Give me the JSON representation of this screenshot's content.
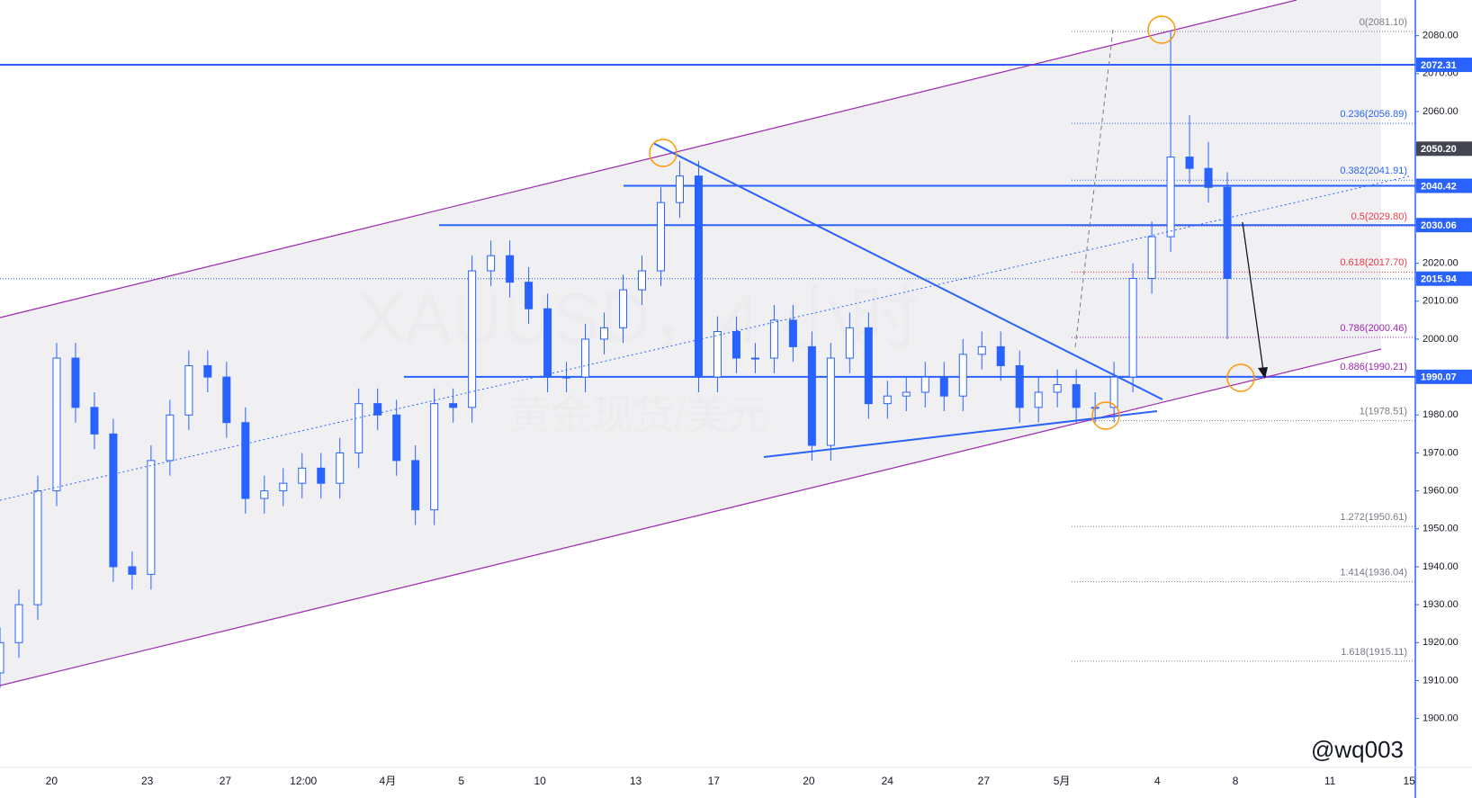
{
  "chart_data": {
    "type": "candlestick",
    "watermark": "XAUUSD，4 小时",
    "watermark2": "黄金现货/美元",
    "signature": "@wq003",
    "x": [
      0,
      3,
      6,
      9,
      12,
      15,
      18,
      21,
      24,
      27,
      30,
      33,
      36,
      39,
      42,
      45,
      48,
      51,
      54,
      57,
      60,
      63,
      66,
      69,
      72,
      75,
      78,
      81,
      84,
      87,
      90,
      93,
      96,
      99,
      102,
      105,
      108,
      111,
      114,
      117,
      120,
      123,
      126,
      129,
      132,
      135,
      138,
      141,
      144,
      147,
      150,
      153,
      156,
      159,
      162,
      165,
      168,
      171,
      174,
      177,
      180,
      183,
      186,
      189,
      192,
      195
    ],
    "open": [
      1912,
      1920,
      1930,
      1960,
      1995,
      1982,
      1975,
      1940,
      1938,
      1968,
      1980,
      1993,
      1990,
      1978,
      1958,
      1960,
      1962,
      1966,
      1962,
      1970,
      1983,
      1980,
      1968,
      1955,
      1983,
      1982,
      2018,
      2022,
      2015,
      2008,
      1990,
      1990,
      2000,
      2003,
      2013,
      2018,
      2036,
      2043,
      1990,
      2002,
      1995,
      1995,
      2005,
      1998,
      1972,
      1995,
      2003,
      1983,
      1985,
      1986,
      1990,
      1985,
      1996,
      1998,
      1993,
      1982,
      1986,
      1988,
      1982,
      1982,
      1990,
      2016,
      2027,
      2048,
      2045,
      2040
    ],
    "high": [
      1924,
      1934,
      1964,
      1999,
      1999,
      1986,
      1979,
      1944,
      1972,
      1984,
      1997,
      1997,
      1994,
      1982,
      1964,
      1966,
      1970,
      1970,
      1974,
      1987,
      1987,
      1984,
      1972,
      1987,
      1987,
      2022,
      2026,
      2026,
      2019,
      2012,
      1994,
      2004,
      2007,
      2017,
      2022,
      2040,
      2047,
      2047,
      2006,
      2006,
      1999,
      2009,
      2009,
      2002,
      1999,
      2007,
      2007,
      1989,
      1990,
      1994,
      1994,
      2000,
      2002,
      2002,
      1997,
      1990,
      1992,
      1992,
      1986,
      1994,
      2020,
      2031,
      2081,
      2059,
      2052,
      2044
    ],
    "low": [
      1908,
      1916,
      1926,
      1956,
      1978,
      1971,
      1936,
      1934,
      1934,
      1964,
      1976,
      1986,
      1974,
      1954,
      1954,
      1956,
      1958,
      1958,
      1958,
      1966,
      1976,
      1964,
      1951,
      1951,
      1978,
      1978,
      2014,
      2011,
      2004,
      1986,
      1986,
      1986,
      1996,
      1999,
      2009,
      2014,
      2032,
      1986,
      1986,
      1991,
      1991,
      1991,
      1994,
      1968,
      1968,
      1991,
      1979,
      1979,
      1981,
      1982,
      1981,
      1981,
      1992,
      1989,
      1978,
      1978,
      1982,
      1978,
      1978,
      1978,
      1986,
      2012,
      2023,
      2041,
      2036,
      2000
    ],
    "close": [
      1920,
      1930,
      1960,
      1995,
      1982,
      1975,
      1940,
      1938,
      1968,
      1980,
      1993,
      1990,
      1978,
      1958,
      1960,
      1962,
      1966,
      1962,
      1970,
      1983,
      1980,
      1968,
      1955,
      1983,
      1982,
      2018,
      2022,
      2015,
      2008,
      1990,
      1990,
      2000,
      2003,
      2013,
      2018,
      2036,
      2043,
      1990,
      2002,
      1995,
      1995,
      2005,
      1998,
      1972,
      1995,
      2003,
      1983,
      1985,
      1986,
      1990,
      1985,
      1996,
      1998,
      1993,
      1982,
      1986,
      1988,
      1982,
      1982,
      1990,
      2016,
      2027,
      2048,
      2045,
      2040,
      2016
    ],
    "color": "#2962ff",
    "xlim": [
      0,
      225
    ],
    "xticks": [
      {
        "value": 8.2,
        "label": "20"
      },
      {
        "value": 23.4,
        "label": "23"
      },
      {
        "value": 35.8,
        "label": "27"
      },
      {
        "value": 48.2,
        "label": "12:00"
      },
      {
        "value": 61.6,
        "label": "4月"
      },
      {
        "value": 73.3,
        "label": "5"
      },
      {
        "value": 85.8,
        "label": "10"
      },
      {
        "value": 101,
        "label": "13"
      },
      {
        "value": 113.4,
        "label": "17"
      },
      {
        "value": 128.5,
        "label": "20"
      },
      {
        "value": 141,
        "label": "24"
      },
      {
        "value": 156.3,
        "label": "27"
      },
      {
        "value": 168.7,
        "label": "5月"
      },
      {
        "value": 183.9,
        "label": "4"
      },
      {
        "value": 196.3,
        "label": "8"
      },
      {
        "value": 211.3,
        "label": "11"
      },
      {
        "value": 223.9,
        "label": "15"
      }
    ],
    "ylim": [
      1887.1,
      2089.4
    ],
    "yticks": [
      {
        "value": 1900,
        "label": "1900.00"
      },
      {
        "value": 1910,
        "label": "1910.00"
      },
      {
        "value": 1920,
        "label": "1920.00"
      },
      {
        "value": 1930,
        "label": "1930.00"
      },
      {
        "value": 1940,
        "label": "1940.00"
      },
      {
        "value": 1950,
        "label": "1950.00"
      },
      {
        "value": 1960,
        "label": "1960.00"
      },
      {
        "value": 1970,
        "label": "1970.00"
      },
      {
        "value": 1980,
        "label": "1980.00"
      },
      {
        "value": 1990,
        "label": "1990.00"
      },
      {
        "value": 2000,
        "label": "2000.00"
      },
      {
        "value": 2010,
        "label": "2010.00"
      },
      {
        "value": 2020,
        "label": "2020.00"
      },
      {
        "value": 2030,
        "label": "2030.00"
      },
      {
        "value": 2040,
        "label": "2040.00"
      },
      {
        "value": 2050,
        "label": "2050.00"
      },
      {
        "value": 2060,
        "label": "2060.00"
      },
      {
        "value": 2070,
        "label": "2070.00"
      },
      {
        "value": 2080,
        "label": "2080.00"
      }
    ],
    "price_lines": [
      {
        "value": 2072.31,
        "label": "2072.31",
        "color": "#2962ff"
      },
      {
        "value": 2050.2,
        "label": "2050.20",
        "color": "#434651"
      },
      {
        "value": 2040.42,
        "label": "2040.42",
        "color": "#2962ff"
      },
      {
        "value": 2030.06,
        "label": "2030.06",
        "color": "#2962ff"
      },
      {
        "value": 2015.94,
        "label": "2015.94",
        "color": "#2962ff"
      },
      {
        "value": 1990.07,
        "label": "1990.07",
        "color": "#2962ff"
      }
    ],
    "fib_levels": [
      {
        "value": 2081.1,
        "label": "0(2081.10)",
        "color": "#787b86"
      },
      {
        "value": 2056.89,
        "label": "0.236(2056.89)",
        "color": "#2962ff"
      },
      {
        "value": 2041.91,
        "label": "0.382(2041.91)",
        "color": "#2962ff"
      },
      {
        "value": 2029.8,
        "label": "0.5(2029.80)",
        "color": "#f23645"
      },
      {
        "value": 2017.7,
        "label": "0.618(2017.70)",
        "color": "#f23645"
      },
      {
        "value": 2000.46,
        "label": "0.786(2000.46)",
        "color": "#9c27b0"
      },
      {
        "value": 1990.21,
        "label": "0.886(1990.21)",
        "color": "#9c27b0"
      },
      {
        "value": 1978.51,
        "label": "1(1978.51)",
        "color": "#787b86"
      },
      {
        "value": 1950.61,
        "label": "1.272(1950.61)",
        "color": "#787b86"
      },
      {
        "value": 1936.04,
        "label": "1.414(1936.04)",
        "color": "#787b86"
      },
      {
        "value": 1915.11,
        "label": "1.618(1915.11)",
        "color": "#787b86"
      }
    ]
  }
}
